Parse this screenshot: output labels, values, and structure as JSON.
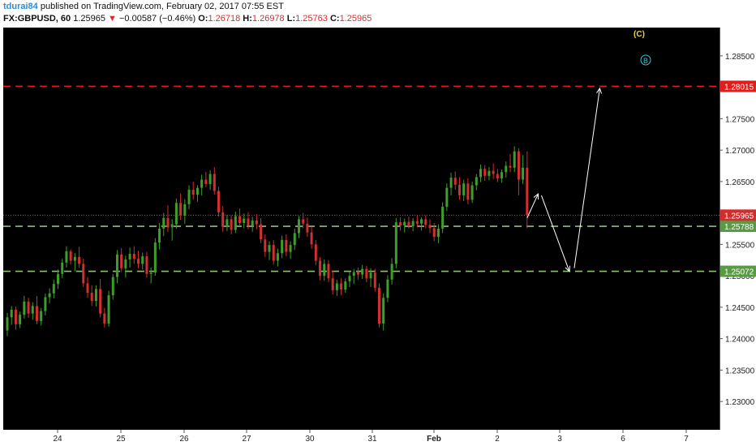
{
  "header": {
    "publisher": "tdurai84",
    "published_text": "published on TradingView.com, February 02, 2017 07:55 EST",
    "symbol": "FX:GBPUSD, 60",
    "last": "1.25965",
    "change": "−0.00587 (−0.46%)",
    "open_label": "O:",
    "open": "1.26718",
    "high_label": "H:",
    "high": "1.26978",
    "low_label": "L:",
    "low": "1.25763",
    "close_label": "C:",
    "close": "1.25965"
  },
  "chart_data": {
    "type": "candlestick",
    "ylim": [
      1.2255,
      1.2895
    ],
    "y_ticks": [
      "1.23000",
      "1.23500",
      "1.24000",
      "1.24500",
      "1.25000",
      "1.25500",
      "1.26000",
      "1.26500",
      "1.27000",
      "1.27500",
      "1.28000",
      "1.28500"
    ],
    "x_ticks": [
      "24",
      "25",
      "26",
      "27",
      "30",
      "31",
      "Feb",
      "2",
      "3",
      "6",
      "7"
    ],
    "colors": {
      "background": "#000000",
      "up": "#3f9e2b",
      "down": "#d22f2f",
      "grid": "none",
      "red_level": "#e41b1b",
      "green_level": "#8fbf75",
      "price_line": "#d13a3a",
      "arrow": "#ffffff"
    },
    "candles": [
      [
        1.2413,
        1.2441,
        1.2404,
        1.2434
      ],
      [
        1.2434,
        1.2452,
        1.2422,
        1.2446
      ],
      [
        1.2446,
        1.2451,
        1.2414,
        1.2423
      ],
      [
        1.2423,
        1.2443,
        1.2417,
        1.2438
      ],
      [
        1.2438,
        1.2468,
        1.2432,
        1.2459
      ],
      [
        1.2459,
        1.2465,
        1.2433,
        1.244
      ],
      [
        1.244,
        1.2458,
        1.243,
        1.2452
      ],
      [
        1.2452,
        1.2468,
        1.2423,
        1.2428
      ],
      [
        1.2428,
        1.2449,
        1.2421,
        1.2444
      ],
      [
        1.2444,
        1.2472,
        1.2437,
        1.2466
      ],
      [
        1.2466,
        1.248,
        1.2456,
        1.2472
      ],
      [
        1.2472,
        1.2494,
        1.2464,
        1.2487
      ],
      [
        1.2487,
        1.251,
        1.2479,
        1.2503
      ],
      [
        1.2503,
        1.2527,
        1.2496,
        1.2521
      ],
      [
        1.2521,
        1.2547,
        1.2513,
        1.2539
      ],
      [
        1.2539,
        1.2542,
        1.2518,
        1.2524
      ],
      [
        1.2524,
        1.2536,
        1.2507,
        1.253
      ],
      [
        1.253,
        1.2546,
        1.2513,
        1.2519
      ],
      [
        1.2519,
        1.2527,
        1.2482,
        1.2488
      ],
      [
        1.2488,
        1.2498,
        1.2465,
        1.2473
      ],
      [
        1.2473,
        1.2485,
        1.2452,
        1.246
      ],
      [
        1.246,
        1.2485,
        1.2451,
        1.2479
      ],
      [
        1.2479,
        1.2495,
        1.2434,
        1.244
      ],
      [
        1.244,
        1.2449,
        1.2418,
        1.2424
      ],
      [
        1.2424,
        1.2476,
        1.2419,
        1.2469
      ],
      [
        1.2469,
        1.2503,
        1.2462,
        1.2498
      ],
      [
        1.2498,
        1.2541,
        1.2488,
        1.2534
      ],
      [
        1.2534,
        1.2544,
        1.2506,
        1.2512
      ],
      [
        1.2512,
        1.2532,
        1.2497,
        1.2526
      ],
      [
        1.2526,
        1.2545,
        1.2513,
        1.2535
      ],
      [
        1.2535,
        1.2547,
        1.2519,
        1.2527
      ],
      [
        1.2527,
        1.254,
        1.2512,
        1.2519
      ],
      [
        1.2519,
        1.2537,
        1.251,
        1.2531
      ],
      [
        1.2531,
        1.2538,
        1.2497,
        1.2503
      ],
      [
        1.2503,
        1.2513,
        1.2488,
        1.2505
      ],
      [
        1.2505,
        1.256,
        1.25,
        1.2553
      ],
      [
        1.2553,
        1.2584,
        1.2542,
        1.2575
      ],
      [
        1.2575,
        1.26,
        1.2563,
        1.2592
      ],
      [
        1.2592,
        1.2612,
        1.257,
        1.2577
      ],
      [
        1.2577,
        1.259,
        1.2556,
        1.2582
      ],
      [
        1.2582,
        1.2623,
        1.2575,
        1.2616
      ],
      [
        1.2616,
        1.2631,
        1.2589,
        1.2596
      ],
      [
        1.2596,
        1.2622,
        1.2583,
        1.2614
      ],
      [
        1.2614,
        1.2644,
        1.2606,
        1.2637
      ],
      [
        1.2637,
        1.265,
        1.2621,
        1.2629
      ],
      [
        1.2629,
        1.2644,
        1.2618,
        1.264
      ],
      [
        1.264,
        1.2661,
        1.2628,
        1.2653
      ],
      [
        1.2653,
        1.2665,
        1.2641,
        1.2646
      ],
      [
        1.2646,
        1.2668,
        1.2637,
        1.2662
      ],
      [
        1.2662,
        1.2673,
        1.2629,
        1.2635
      ],
      [
        1.2635,
        1.2642,
        1.2594,
        1.2601
      ],
      [
        1.2601,
        1.2611,
        1.257,
        1.2578
      ],
      [
        1.2578,
        1.2597,
        1.2571,
        1.259
      ],
      [
        1.259,
        1.2596,
        1.2566,
        1.2573
      ],
      [
        1.2573,
        1.2602,
        1.2568,
        1.2595
      ],
      [
        1.2595,
        1.2607,
        1.2579,
        1.2584
      ],
      [
        1.2584,
        1.2599,
        1.2576,
        1.2591
      ],
      [
        1.2591,
        1.2601,
        1.2574,
        1.258
      ],
      [
        1.258,
        1.2594,
        1.257,
        1.2588
      ],
      [
        1.2588,
        1.2598,
        1.2574,
        1.2582
      ],
      [
        1.2582,
        1.2592,
        1.2552,
        1.2558
      ],
      [
        1.2558,
        1.2566,
        1.253,
        1.2538
      ],
      [
        1.2538,
        1.2555,
        1.2525,
        1.2549
      ],
      [
        1.2549,
        1.2557,
        1.2518,
        1.2524
      ],
      [
        1.2524,
        1.2543,
        1.2515,
        1.2536
      ],
      [
        1.2536,
        1.2564,
        1.2528,
        1.2557
      ],
      [
        1.2557,
        1.2566,
        1.2531,
        1.2538
      ],
      [
        1.2538,
        1.2555,
        1.2527,
        1.2549
      ],
      [
        1.2549,
        1.2575,
        1.2541,
        1.2568
      ],
      [
        1.2568,
        1.2595,
        1.256,
        1.259
      ],
      [
        1.259,
        1.26,
        1.2576,
        1.2583
      ],
      [
        1.2583,
        1.2593,
        1.2562,
        1.2569
      ],
      [
        1.2569,
        1.2578,
        1.2543,
        1.255
      ],
      [
        1.255,
        1.2557,
        1.2517,
        1.2524
      ],
      [
        1.2524,
        1.253,
        1.2493,
        1.25
      ],
      [
        1.25,
        1.2526,
        1.2492,
        1.2519
      ],
      [
        1.2519,
        1.2525,
        1.249,
        1.2496
      ],
      [
        1.2496,
        1.2508,
        1.247,
        1.2477
      ],
      [
        1.2477,
        1.2494,
        1.2468,
        1.2488
      ],
      [
        1.2488,
        1.2496,
        1.2469,
        1.2478
      ],
      [
        1.2478,
        1.2496,
        1.2473,
        1.2491
      ],
      [
        1.2491,
        1.2507,
        1.2482,
        1.25
      ],
      [
        1.25,
        1.2511,
        1.2487,
        1.2506
      ],
      [
        1.2506,
        1.2513,
        1.2494,
        1.2502
      ],
      [
        1.2502,
        1.2517,
        1.2495,
        1.2511
      ],
      [
        1.2511,
        1.2516,
        1.249,
        1.2496
      ],
      [
        1.2496,
        1.2512,
        1.2482,
        1.2505
      ],
      [
        1.2505,
        1.2511,
        1.2475,
        1.2481
      ],
      [
        1.2481,
        1.2488,
        1.2418,
        1.2424
      ],
      [
        1.2424,
        1.2472,
        1.2413,
        1.2465
      ],
      [
        1.2465,
        1.2501,
        1.2458,
        1.2494
      ],
      [
        1.2494,
        1.2528,
        1.2486,
        1.2519
      ],
      [
        1.2519,
        1.2592,
        1.2512,
        1.2585
      ],
      [
        1.2585,
        1.2593,
        1.2572,
        1.258
      ],
      [
        1.258,
        1.2591,
        1.2569,
        1.2586
      ],
      [
        1.2586,
        1.2594,
        1.2575,
        1.2579
      ],
      [
        1.2579,
        1.2592,
        1.2571,
        1.2587
      ],
      [
        1.2587,
        1.2596,
        1.2577,
        1.2583
      ],
      [
        1.2583,
        1.2593,
        1.2572,
        1.259
      ],
      [
        1.259,
        1.2596,
        1.2576,
        1.2581
      ],
      [
        1.2581,
        1.259,
        1.2568,
        1.2576
      ],
      [
        1.2576,
        1.2584,
        1.2555,
        1.2562
      ],
      [
        1.2562,
        1.2582,
        1.2552,
        1.2575
      ],
      [
        1.2575,
        1.2617,
        1.2568,
        1.261
      ],
      [
        1.261,
        1.2647,
        1.2603,
        1.264
      ],
      [
        1.264,
        1.2664,
        1.2628,
        1.2656
      ],
      [
        1.2656,
        1.2666,
        1.2637,
        1.2645
      ],
      [
        1.2645,
        1.2657,
        1.2621,
        1.2628
      ],
      [
        1.2628,
        1.2653,
        1.2619,
        1.2647
      ],
      [
        1.2647,
        1.2655,
        1.2614,
        1.2621
      ],
      [
        1.2621,
        1.265,
        1.2616,
        1.2644
      ],
      [
        1.2644,
        1.2662,
        1.2636,
        1.2657
      ],
      [
        1.2657,
        1.2677,
        1.2649,
        1.267
      ],
      [
        1.267,
        1.2676,
        1.2651,
        1.2659
      ],
      [
        1.2659,
        1.2673,
        1.2652,
        1.2667
      ],
      [
        1.2667,
        1.2679,
        1.2654,
        1.2662
      ],
      [
        1.2662,
        1.267,
        1.2649,
        1.2655
      ],
      [
        1.2655,
        1.2669,
        1.2648,
        1.2665
      ],
      [
        1.2665,
        1.2682,
        1.2656,
        1.2675
      ],
      [
        1.2675,
        1.2694,
        1.2665,
        1.2672
      ],
      [
        1.2672,
        1.2706,
        1.2665,
        1.2698
      ],
      [
        1.2698,
        1.2703,
        1.2628,
        1.2653
      ],
      [
        1.2653,
        1.2692,
        1.2646,
        1.2672
      ],
      [
        1.2672,
        1.2698,
        1.2576,
        1.2597
      ]
    ],
    "levels": [
      {
        "label": "1.28015",
        "value": 1.28015,
        "style": "red"
      },
      {
        "label": "1.25788",
        "value": 1.25788,
        "style": "green"
      },
      {
        "label": "1.25072",
        "value": 1.25072,
        "style": "green"
      }
    ],
    "last_price": {
      "label": "1.25965",
      "value": 1.25965
    },
    "wave_labels": [
      {
        "text": "(C)"
      },
      {
        "text": "B"
      }
    ],
    "projection_path": [
      [
        123,
        1.2592
      ],
      [
        126,
        1.2633
      ],
      [
        133,
        1.2507
      ],
      [
        140,
        1.2801
      ]
    ]
  }
}
